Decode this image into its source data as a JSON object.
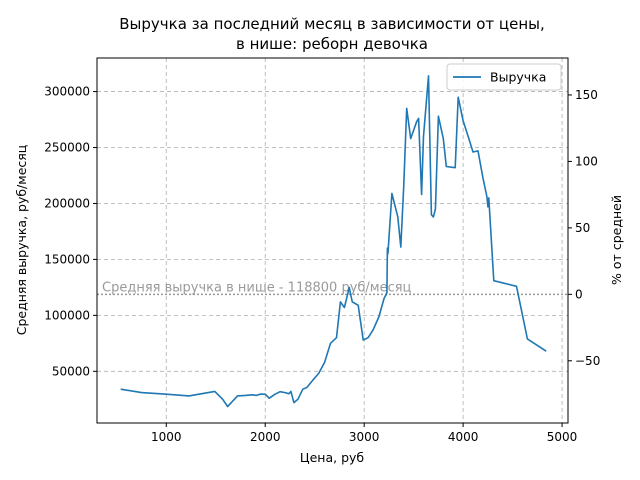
{
  "chart_data": {
    "type": "line",
    "title": [
      "Выручка за последний месяц в зависимости от цены,",
      "в нише: реборн девочка"
    ],
    "xlabel": "Цена, руб",
    "ylabel": "Средняя выручка, руб/месяц",
    "y2label": "% от средней",
    "xlim": [
      300,
      5060
    ],
    "ylim": [
      3800,
      330000
    ],
    "y2lim": [
      -96.8,
      177.8
    ],
    "x_ticks": [
      1000,
      2000,
      3000,
      4000,
      5000
    ],
    "y_ticks": [
      50000,
      100000,
      150000,
      200000,
      250000,
      300000
    ],
    "y2_ticks": [
      -50,
      0,
      50,
      100,
      150
    ],
    "grid": true,
    "legend": {
      "position": "top-right",
      "entries": [
        "Выручка"
      ]
    },
    "mean_line": {
      "value": 118800,
      "label": "Средняя выручка в нише - 118800 руб/месяц"
    },
    "series": [
      {
        "name": "Выручка",
        "color": "#1f77b4",
        "points": [
          [
            540,
            34000
          ],
          [
            750,
            31000
          ],
          [
            1000,
            29500
          ],
          [
            1230,
            28000
          ],
          [
            1490,
            32000
          ],
          [
            1570,
            25000
          ],
          [
            1620,
            18500
          ],
          [
            1720,
            28000
          ],
          [
            1800,
            28500
          ],
          [
            1870,
            29000
          ],
          [
            1910,
            28500
          ],
          [
            1950,
            29500
          ],
          [
            2000,
            29500
          ],
          [
            2040,
            26000
          ],
          [
            2100,
            29500
          ],
          [
            2150,
            31800
          ],
          [
            2200,
            31000
          ],
          [
            2240,
            30000
          ],
          [
            2260,
            32000
          ],
          [
            2290,
            22000
          ],
          [
            2330,
            25000
          ],
          [
            2380,
            34000
          ],
          [
            2420,
            35500
          ],
          [
            2490,
            43000
          ],
          [
            2540,
            48000
          ],
          [
            2600,
            58000
          ],
          [
            2660,
            75000
          ],
          [
            2720,
            80000
          ],
          [
            2760,
            112000
          ],
          [
            2800,
            107000
          ],
          [
            2850,
            125000
          ],
          [
            2860,
            120000
          ],
          [
            2880,
            112000
          ],
          [
            2900,
            111000
          ],
          [
            2940,
            109000
          ],
          [
            2990,
            78000
          ],
          [
            3040,
            80000
          ],
          [
            3090,
            87000
          ],
          [
            3150,
            99000
          ],
          [
            3200,
            115000
          ],
          [
            3230,
            120000
          ],
          [
            3235,
            160000
          ],
          [
            3240,
            155000
          ],
          [
            3280,
            209000
          ],
          [
            3340,
            188000
          ],
          [
            3370,
            161000
          ],
          [
            3400,
            215000
          ],
          [
            3430,
            285000
          ],
          [
            3470,
            258000
          ],
          [
            3530,
            273000
          ],
          [
            3550,
            276000
          ],
          [
            3580,
            208000
          ],
          [
            3600,
            260000
          ],
          [
            3650,
            314000
          ],
          [
            3680,
            190000
          ],
          [
            3700,
            188000
          ],
          [
            3720,
            195000
          ],
          [
            3750,
            278000
          ],
          [
            3800,
            258000
          ],
          [
            3830,
            233000
          ],
          [
            3920,
            232000
          ],
          [
            3950,
            295000
          ],
          [
            4000,
            274000
          ],
          [
            4050,
            260000
          ],
          [
            4100,
            246000
          ],
          [
            4150,
            247000
          ],
          [
            4200,
            223000
          ],
          [
            4240,
            206000
          ],
          [
            4250,
            197000
          ],
          [
            4260,
            205000
          ],
          [
            4270,
            190000
          ],
          [
            4310,
            131000
          ],
          [
            4540,
            126000
          ],
          [
            4650,
            79000
          ],
          [
            4840,
            68000
          ]
        ]
      }
    ]
  }
}
